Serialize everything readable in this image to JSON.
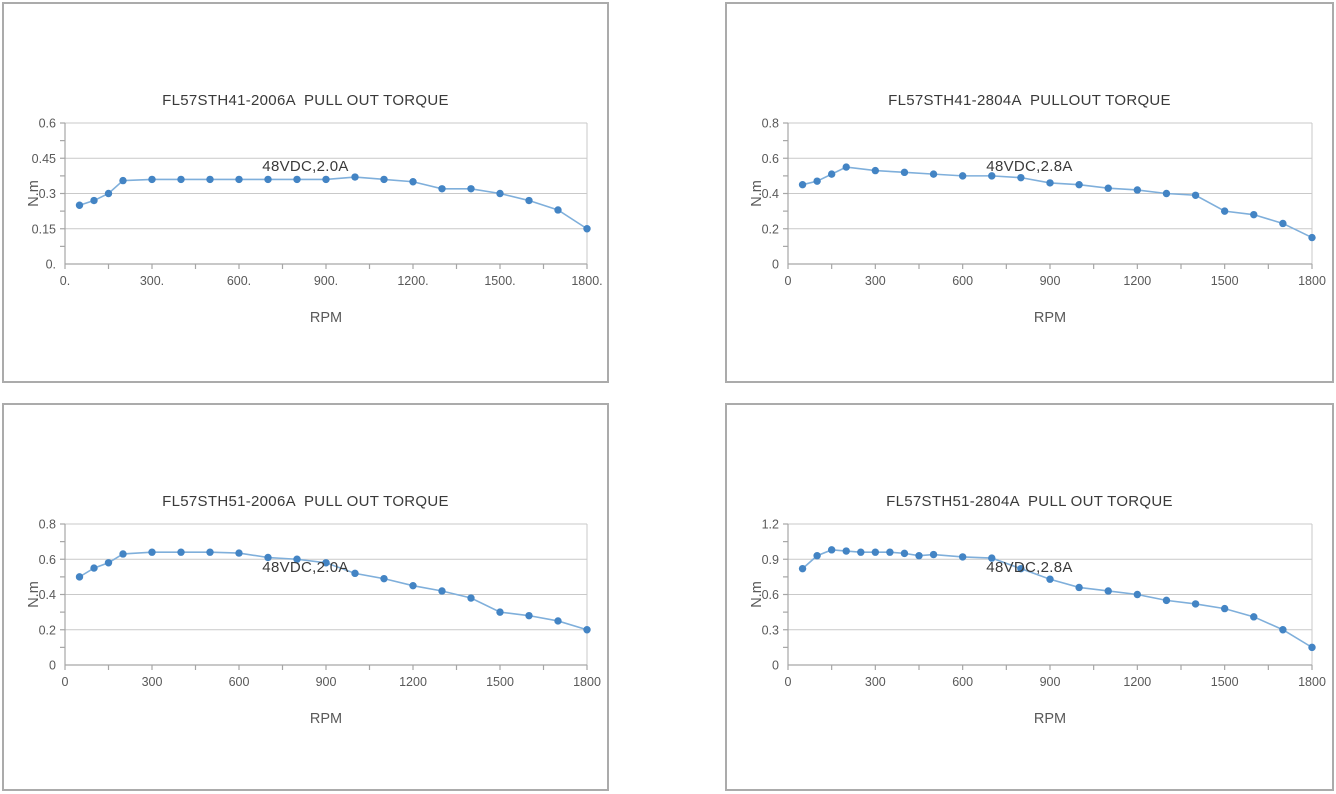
{
  "page": {
    "background": "#FFFFFF"
  },
  "style": {
    "box_border_color": "#ABABAB",
    "grid_color": "#C9C9C9",
    "axis_color": "#A6A6A6",
    "line_color": "#7FAFDB",
    "marker_color": "#4384C4",
    "tick_text_color": "#595959",
    "title_text_color": "#3A3A3A"
  },
  "chart_data": [
    {
      "type": "line",
      "title": "FL57STH41-2006A  PULL OUT TORQUE",
      "subtitle": "48VDC,2.0A",
      "xlabel": "RPM",
      "ylabel": "N.m",
      "xlim": [
        0,
        1800
      ],
      "ylim": [
        0,
        0.6
      ],
      "x_tick_values": [
        0,
        300,
        600,
        900,
        1200,
        1500,
        1800
      ],
      "x_tick_labels": [
        "0.",
        "300.",
        "600.",
        "900.",
        "1200.",
        "1500.",
        "1800."
      ],
      "x_minor_step": 150,
      "y_tick_values": [
        0,
        0.15,
        0.3,
        0.45,
        0.6
      ],
      "y_tick_labels": [
        "0.",
        "0.15",
        "0.3",
        "0.45",
        "0.6"
      ],
      "y_minor_step": 0.075,
      "grid": "horizontal",
      "legend": "none",
      "series": [
        {
          "name": "pull-out torque",
          "x": [
            50,
            100,
            150,
            200,
            300,
            400,
            500,
            600,
            700,
            800,
            900,
            1000,
            1100,
            1200,
            1300,
            1400,
            1500,
            1600,
            1700,
            1800
          ],
          "y": [
            0.25,
            0.27,
            0.3,
            0.355,
            0.36,
            0.36,
            0.36,
            0.36,
            0.36,
            0.36,
            0.36,
            0.37,
            0.36,
            0.35,
            0.32,
            0.32,
            0.3,
            0.27,
            0.23,
            0.15
          ]
        }
      ]
    },
    {
      "type": "line",
      "title": "FL57STH41-2804A  PULLOUT TORQUE",
      "subtitle": "48VDC,2.8A",
      "xlabel": "RPM",
      "ylabel": "N.m",
      "xlim": [
        0,
        1800
      ],
      "ylim": [
        0,
        0.8
      ],
      "x_tick_values": [
        0,
        300,
        600,
        900,
        1200,
        1500,
        1800
      ],
      "x_tick_labels": [
        "0",
        "300",
        "600",
        "900",
        "1200",
        "1500",
        "1800"
      ],
      "x_minor_step": 150,
      "y_tick_values": [
        0,
        0.2,
        0.4,
        0.6,
        0.8
      ],
      "y_tick_labels": [
        "0",
        "0.2",
        "0.4",
        "0.6",
        "0.8"
      ],
      "y_minor_step": 0.1,
      "grid": "horizontal",
      "legend": "none",
      "series": [
        {
          "name": "pull-out torque",
          "x": [
            50,
            100,
            150,
            200,
            300,
            400,
            500,
            600,
            700,
            800,
            900,
            1000,
            1100,
            1200,
            1300,
            1400,
            1500,
            1600,
            1700,
            1800
          ],
          "y": [
            0.45,
            0.47,
            0.51,
            0.55,
            0.53,
            0.52,
            0.51,
            0.5,
            0.5,
            0.49,
            0.46,
            0.45,
            0.43,
            0.42,
            0.4,
            0.39,
            0.3,
            0.28,
            0.23,
            0.15
          ]
        }
      ]
    },
    {
      "type": "line",
      "title": "FL57STH51-2006A  PULL OUT TORQUE",
      "subtitle": "48VDC,2.0A",
      "xlabel": "RPM",
      "ylabel": "N.m",
      "xlim": [
        0,
        1800
      ],
      "ylim": [
        0,
        0.8
      ],
      "x_tick_values": [
        0,
        300,
        600,
        900,
        1200,
        1500,
        1800
      ],
      "x_tick_labels": [
        "0",
        "300",
        "600",
        "900",
        "1200",
        "1500",
        "1800"
      ],
      "x_minor_step": 150,
      "y_tick_values": [
        0,
        0.2,
        0.4,
        0.6,
        0.8
      ],
      "y_tick_labels": [
        "0",
        "0.2",
        "0.4",
        "0.6",
        "0.8"
      ],
      "y_minor_step": 0.1,
      "grid": "horizontal",
      "legend": "none",
      "series": [
        {
          "name": "pull-out torque",
          "x": [
            50,
            100,
            150,
            200,
            300,
            400,
            500,
            600,
            700,
            800,
            900,
            1000,
            1100,
            1200,
            1300,
            1400,
            1500,
            1600,
            1700,
            1800
          ],
          "y": [
            0.5,
            0.55,
            0.58,
            0.63,
            0.64,
            0.64,
            0.64,
            0.635,
            0.61,
            0.6,
            0.58,
            0.52,
            0.49,
            0.45,
            0.42,
            0.38,
            0.3,
            0.28,
            0.25,
            0.2
          ]
        }
      ]
    },
    {
      "type": "line",
      "title": "FL57STH51-2804A  PULL OUT TORQUE",
      "subtitle": "48VDC,2.8A",
      "xlabel": "RPM",
      "ylabel": "N.m",
      "xlim": [
        0,
        1800
      ],
      "ylim": [
        0,
        1.2
      ],
      "x_tick_values": [
        0,
        300,
        600,
        900,
        1200,
        1500,
        1800
      ],
      "x_tick_labels": [
        "0",
        "300",
        "600",
        "900",
        "1200",
        "1500",
        "1800"
      ],
      "x_minor_step": 150,
      "y_tick_values": [
        0,
        0.3,
        0.6,
        0.9,
        1.2
      ],
      "y_tick_labels": [
        "0",
        "0.3",
        "0.6",
        "0.9",
        "1.2"
      ],
      "y_minor_step": 0.15,
      "grid": "horizontal",
      "legend": "none",
      "series": [
        {
          "name": "pull-out torque",
          "x": [
            50,
            100,
            150,
            200,
            250,
            300,
            350,
            400,
            450,
            500,
            600,
            700,
            800,
            900,
            1000,
            1100,
            1200,
            1300,
            1400,
            1500,
            1600,
            1700,
            1800
          ],
          "y": [
            0.82,
            0.93,
            0.98,
            0.97,
            0.96,
            0.96,
            0.96,
            0.95,
            0.93,
            0.94,
            0.92,
            0.91,
            0.82,
            0.73,
            0.66,
            0.63,
            0.6,
            0.55,
            0.52,
            0.48,
            0.41,
            0.3,
            0.15
          ]
        }
      ]
    }
  ]
}
